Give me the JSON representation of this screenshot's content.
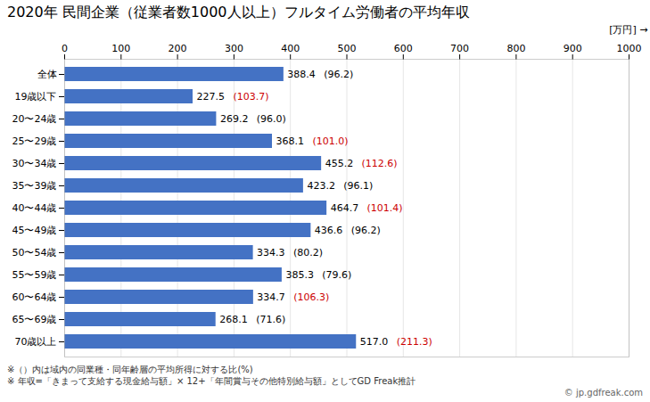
{
  "chart_data": {
    "type": "bar",
    "orientation": "horizontal",
    "title": "2020年 民間企業（従業者数1000人以上）フルタイム労働者の平均年収",
    "xlabel": "[万円]",
    "categories": [
      "全体",
      "19歳以下",
      "20〜24歳",
      "25〜29歳",
      "30〜34歳",
      "35〜39歳",
      "40〜44歳",
      "45〜49歳",
      "50〜54歳",
      "55〜59歳",
      "60〜64歳",
      "65〜69歳",
      "70歳以上"
    ],
    "values": [
      388.4,
      227.5,
      269.2,
      368.1,
      455.2,
      423.2,
      464.7,
      436.6,
      334.3,
      385.3,
      334.7,
      268.1,
      517.0
    ],
    "value_labels": [
      "388.4",
      "227.5",
      "269.2",
      "368.1",
      "455.2",
      "423.2",
      "464.7",
      "436.6",
      "334.3",
      "385.3",
      "334.7",
      "268.1",
      "517.0"
    ],
    "ratios": [
      96.2,
      103.7,
      96.0,
      101.0,
      112.6,
      96.1,
      101.4,
      96.2,
      80.2,
      79.6,
      106.3,
      71.6,
      211.3
    ],
    "ratio_labels": [
      "(96.2)",
      "(103.7)",
      "(96.0)",
      "(101.0)",
      "(112.6)",
      "(96.1)",
      "(101.4)",
      "(96.2)",
      "(80.2)",
      "(79.6)",
      "(106.3)",
      "(71.6)",
      "(211.3)"
    ],
    "ratio_colors": [
      "#000000",
      "#CC0000",
      "#000000",
      "#CC0000",
      "#CC0000",
      "#000000",
      "#CC0000",
      "#000000",
      "#000000",
      "#000000",
      "#CC0000",
      "#000000",
      "#CC0000"
    ],
    "color": "#4472C4",
    "data_labels": true,
    "xlim": [
      0,
      1000
    ],
    "xticks": [
      0,
      100,
      200,
      300,
      400,
      500,
      600,
      700,
      800,
      900,
      1000
    ],
    "grid": true,
    "annotations": [
      "※（）内は域内の同業種・同年齢層の平均所得に対する比(%)",
      "※ 年収=「きまって支給する現金給与額」× 12+「年間賞与その他特別給与額」としてGD Freak推計",
      "© jp.gdfreak.com"
    ]
  }
}
